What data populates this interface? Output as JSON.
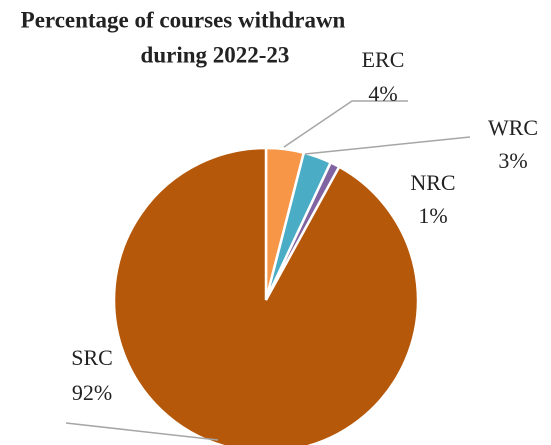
{
  "chart_data": {
    "type": "pie",
    "title": [
      "Percentage of courses withdrawn",
      "during 2022-23"
    ],
    "categories": [
      "ERC",
      "WRC",
      "NRC",
      "SRC"
    ],
    "values": [
      4,
      3,
      1,
      92
    ],
    "value_labels": [
      "4%",
      "3%",
      "1%",
      "92%"
    ],
    "colors": [
      "#f79646",
      "#4bacc6",
      "#8064a2",
      "#b6580a"
    ]
  }
}
